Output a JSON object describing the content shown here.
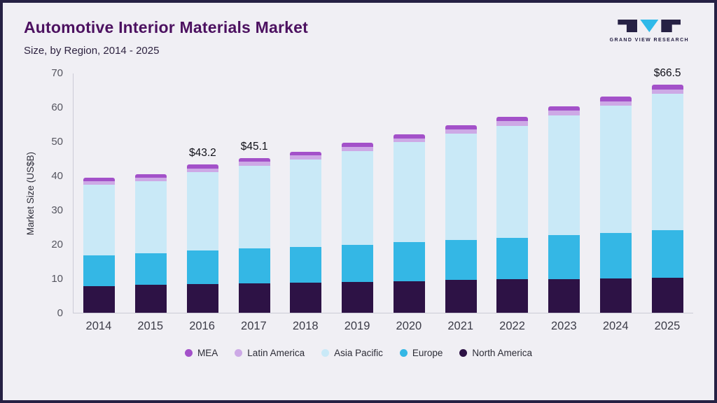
{
  "page": {
    "title": "Automotive Interior Materials Market",
    "subtitle": "Size, by Region, 2014 - 2025",
    "logo_text": "GRAND VIEW RESEARCH"
  },
  "chart_data": {
    "type": "bar",
    "stacked": true,
    "title": "Automotive Interior Materials Market",
    "subtitle": "Size, by Region, 2014 - 2025",
    "xlabel": "",
    "ylabel": "Market Size (US$B)",
    "ylim": [
      0,
      70
    ],
    "yticks": [
      0,
      10,
      20,
      30,
      40,
      50,
      60,
      70
    ],
    "grid": false,
    "legend_position": "bottom",
    "categories": [
      "2014",
      "2015",
      "2016",
      "2017",
      "2018",
      "2019",
      "2020",
      "2021",
      "2022",
      "2023",
      "2024",
      "2025"
    ],
    "series": [
      {
        "name": "North America",
        "color": "#2d1245",
        "values": [
          7.8,
          8.1,
          8.4,
          8.5,
          8.7,
          8.9,
          9.2,
          9.5,
          9.7,
          9.9,
          10.1,
          10.3
        ]
      },
      {
        "name": "Europe",
        "color": "#34b7e5",
        "values": [
          9.0,
          9.3,
          9.7,
          10.2,
          10.5,
          10.9,
          11.4,
          11.8,
          12.2,
          12.7,
          13.1,
          13.7
        ]
      },
      {
        "name": "Asia Pacific",
        "color": "#c9e9f7",
        "values": [
          20.5,
          20.9,
          22.9,
          24.2,
          25.6,
          27.4,
          29.1,
          30.9,
          32.7,
          35.0,
          37.2,
          39.9
        ]
      },
      {
        "name": "Latin America",
        "color": "#cda9e6",
        "values": [
          1.1,
          1.1,
          1.1,
          1.1,
          1.1,
          1.1,
          1.2,
          1.2,
          1.3,
          1.3,
          1.3,
          1.3
        ]
      },
      {
        "name": "MEA",
        "color": "#a351c9",
        "values": [
          1.1,
          1.1,
          1.1,
          1.1,
          1.1,
          1.2,
          1.2,
          1.2,
          1.3,
          1.3,
          1.3,
          1.3
        ]
      }
    ],
    "annotations": [
      {
        "category": "2016",
        "label": "$43.2",
        "total": 43.2
      },
      {
        "category": "2017",
        "label": "$45.1",
        "total": 45.1
      },
      {
        "category": "2025",
        "label": "$66.5",
        "total": 66.5
      }
    ],
    "legend": [
      {
        "name": "MEA",
        "color": "#a351c9"
      },
      {
        "name": "Latin America",
        "color": "#cda9e6"
      },
      {
        "name": "Asia Pacific",
        "color": "#c9e9f7"
      },
      {
        "name": "Europe",
        "color": "#34b7e5"
      },
      {
        "name": "North America",
        "color": "#2d1245"
      }
    ]
  }
}
